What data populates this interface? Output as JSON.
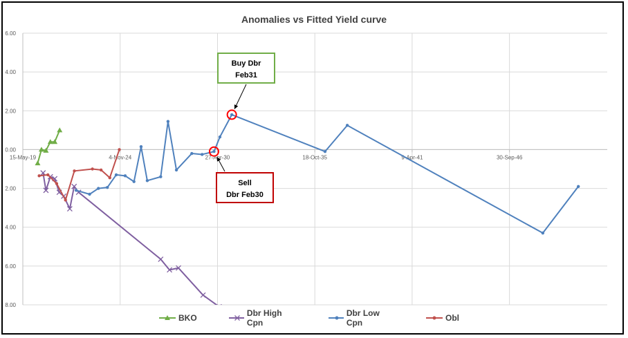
{
  "chart_data": {
    "type": "line",
    "title": "Anomalies vs Fitted Yield curve",
    "xlabel": "",
    "ylabel": "",
    "x_axis": {
      "type": "date",
      "range": [
        "2019-05-15",
        "2052-03-31"
      ],
      "tick_labels": [
        "15-May-19",
        "4-Nov-24",
        "27-Apr-30",
        "18-Oct-35",
        "9-Apr-41",
        "30-Sep-46"
      ],
      "tick_dates": [
        "2019-05-15",
        "2024-11-04",
        "2030-04-27",
        "2035-10-18",
        "2041-04-09",
        "2046-09-30"
      ]
    },
    "y_axis": {
      "range": [
        -8,
        6
      ],
      "tick_values": [
        6,
        4,
        2,
        0,
        -2,
        -4,
        -6,
        -8
      ],
      "tick_labels": [
        "6.00",
        "4.00",
        "2.00",
        "0.00",
        "2.00",
        "4.00",
        "6.00",
        "8.00"
      ]
    },
    "grid": true,
    "legend_position": "bottom",
    "series": [
      {
        "name": "BKO",
        "color": "#70ad47",
        "marker": "triangle",
        "points": [
          [
            "2020-03-15",
            -0.7
          ],
          [
            "2020-06-01",
            0.0
          ],
          [
            "2020-09-01",
            -0.05
          ],
          [
            "2020-12-01",
            0.4
          ],
          [
            "2021-03-01",
            0.4
          ],
          [
            "2021-06-10",
            1.0
          ]
        ]
      },
      {
        "name": "Dbr High Cpn",
        "color": "#7f5fa0",
        "marker": "x",
        "points": [
          [
            "2020-07-04",
            -1.2
          ],
          [
            "2020-09-01",
            -2.1
          ],
          [
            "2020-12-01",
            -1.4
          ],
          [
            "2021-03-01",
            -1.5
          ],
          [
            "2021-06-01",
            -2.2
          ],
          [
            "2021-09-01",
            -2.4
          ],
          [
            "2022-01-04",
            -3.05
          ],
          [
            "2022-04-04",
            -1.9
          ],
          [
            "2022-07-04",
            -2.2
          ],
          [
            "2027-02-15",
            -5.65
          ],
          [
            "2027-08-15",
            -6.2
          ],
          [
            "2028-02-15",
            -6.1
          ],
          [
            "2029-07-04",
            -7.5
          ],
          [
            "2030-06-01",
            -8.1
          ]
        ]
      },
      {
        "name": "Dbr Low Cpn",
        "color": "#4f81bd",
        "marker": "circle",
        "points": [
          [
            "2022-05-15",
            -2.1
          ],
          [
            "2023-02-15",
            -2.3
          ],
          [
            "2023-08-15",
            -2.0
          ],
          [
            "2024-02-15",
            -1.95
          ],
          [
            "2024-08-15",
            -1.3
          ],
          [
            "2025-02-15",
            -1.35
          ],
          [
            "2025-08-15",
            -1.65
          ],
          [
            "2026-01-08",
            0.15
          ],
          [
            "2026-05-15",
            -1.6
          ],
          [
            "2027-02-15",
            -1.4
          ],
          [
            "2027-07-15",
            1.45
          ],
          [
            "2028-01-04",
            -1.05
          ],
          [
            "2028-11-15",
            -0.2
          ],
          [
            "2029-06-15",
            -0.25
          ],
          [
            "2030-02-15",
            -0.1
          ],
          [
            "2030-06-15",
            0.65
          ],
          [
            "2031-02-15",
            1.8
          ],
          [
            "2036-05-15",
            -0.1
          ],
          [
            "2037-08-15",
            1.25
          ],
          [
            "2048-08-15",
            -4.3
          ],
          [
            "2050-08-15",
            -1.9
          ]
        ]
      },
      {
        "name": "Obl",
        "color": "#c0504d",
        "marker": "circle",
        "points": [
          [
            "2020-04-15",
            -1.35
          ],
          [
            "2020-10-11",
            -1.3
          ],
          [
            "2021-04-09",
            -1.75
          ],
          [
            "2021-10-08",
            -2.6
          ],
          [
            "2022-04-08",
            -1.1
          ],
          [
            "2023-04-14",
            -1.0
          ],
          [
            "2023-10-09",
            -1.05
          ],
          [
            "2024-04-05",
            -1.45
          ],
          [
            "2024-10-18",
            0.0
          ]
        ]
      }
    ],
    "annotations": [
      {
        "lines": [
          "Buy Dbr",
          "Feb31"
        ],
        "target": {
          "series": "Dbr Low Cpn",
          "x": "2031-02-15",
          "y": 1.8
        },
        "box_color": "#70ad47",
        "circle_color": "#ff0000"
      },
      {
        "lines": [
          "Sell",
          "Dbr Feb30"
        ],
        "target": {
          "series": "Dbr Low Cpn",
          "x": "2030-02-15",
          "y": -0.1
        },
        "box_color": "#c00000",
        "circle_color": "#ff0000"
      }
    ]
  }
}
